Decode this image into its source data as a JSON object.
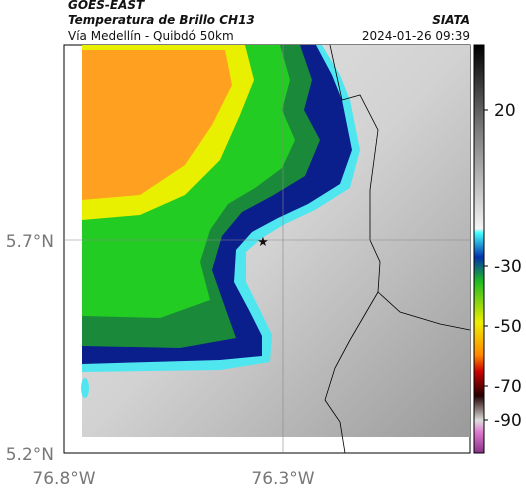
{
  "header": {
    "title": "GOES-EAST",
    "subtitle": "Temperatura de Brillo CH13",
    "location": "Vía Medellín - Quibdó 50km",
    "source": "SIATA",
    "datetime": "2024-01-26 09:39"
  },
  "map": {
    "x_labels": [
      "76.8°W",
      "76.3°W"
    ],
    "y_labels": [
      "5.7°N",
      "5.2°N"
    ]
  },
  "colorbar": {
    "ticks": [
      20,
      -30,
      -50,
      -70,
      -90
    ]
  }
}
